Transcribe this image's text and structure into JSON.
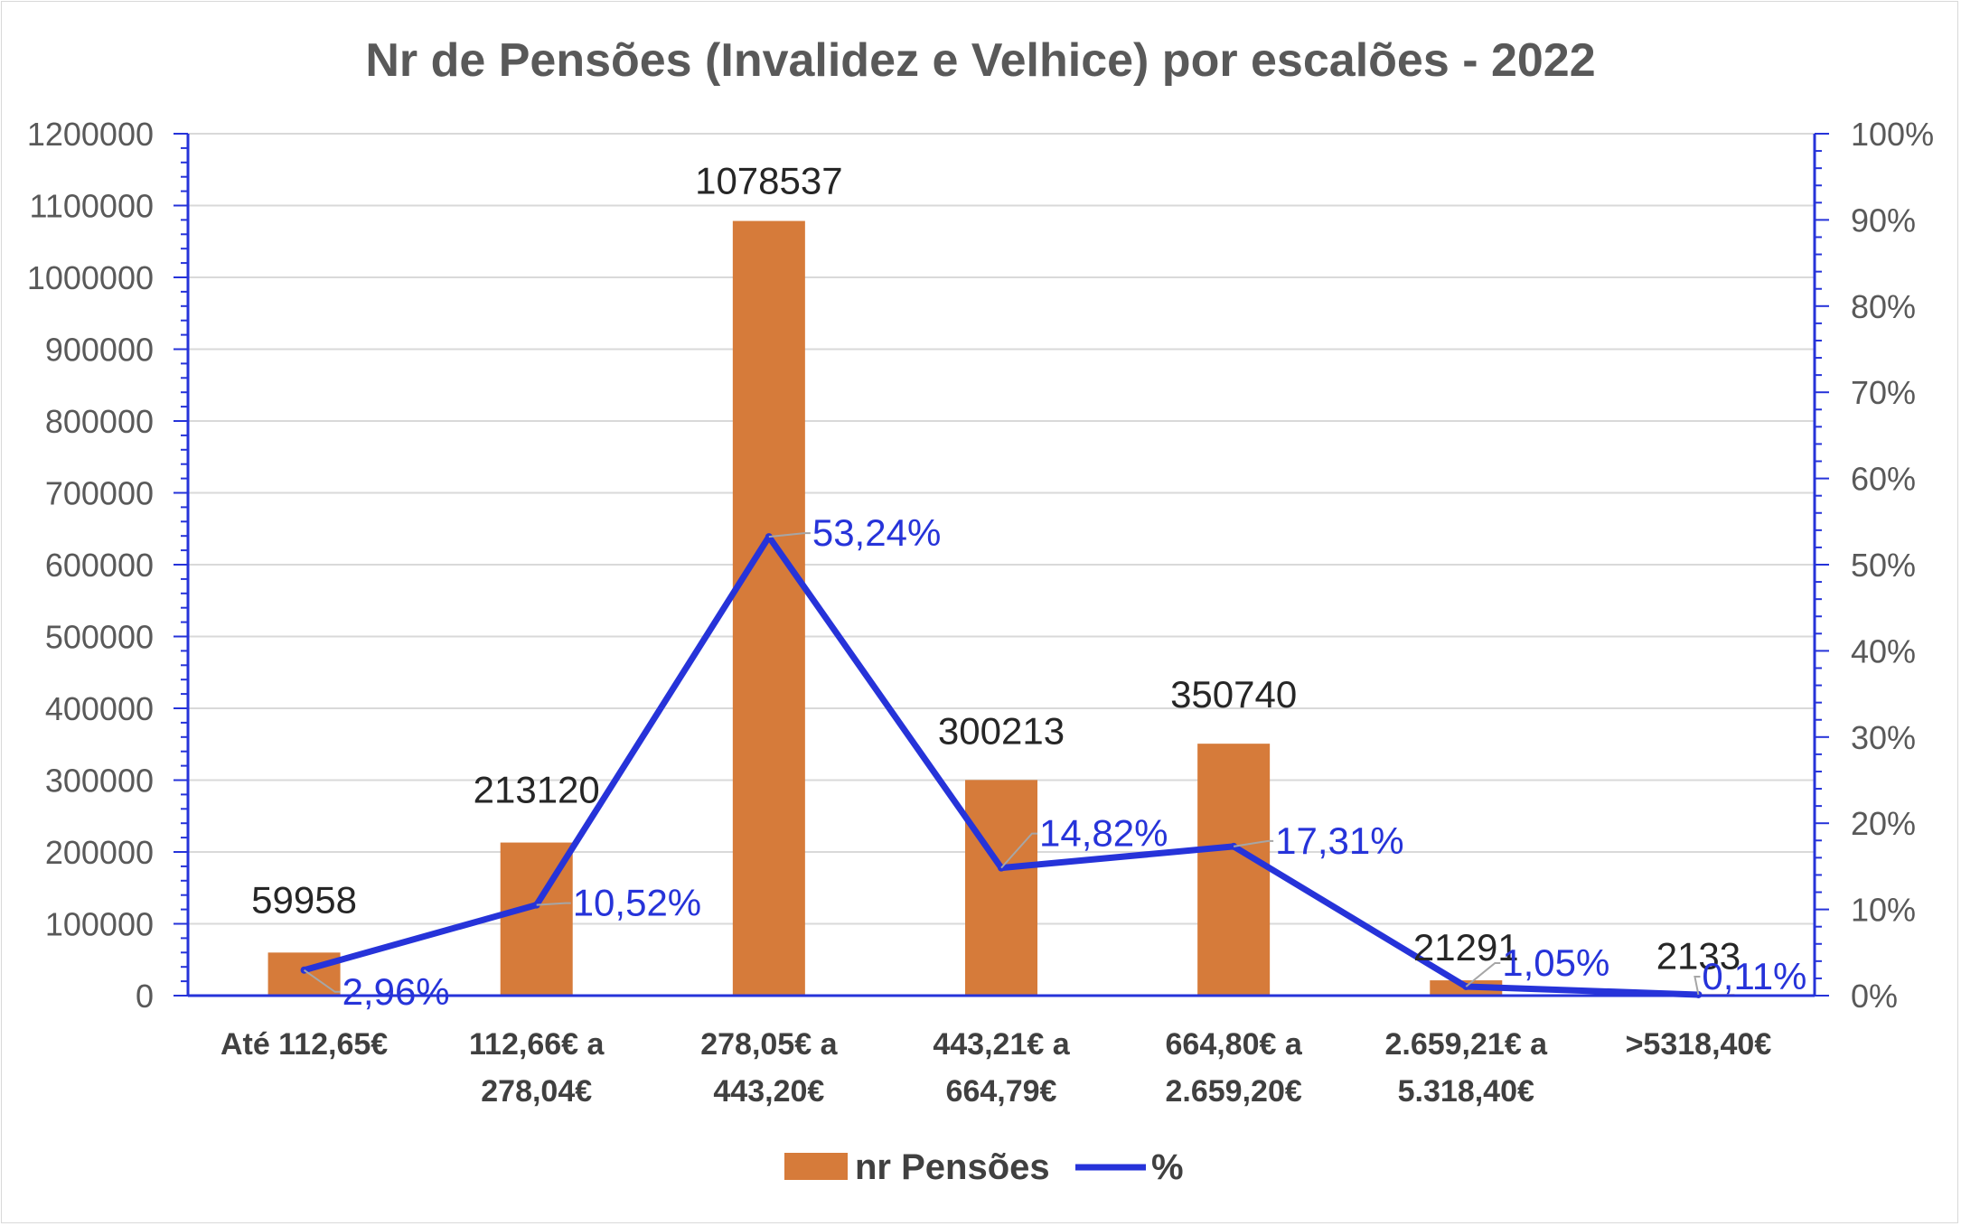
{
  "chart_data": {
    "type": "bar",
    "title": "Nr de Pensões (Invalidez e Velhice) por escalões - 2022",
    "categories": [
      [
        "Até 112,65€"
      ],
      [
        "112,66€ a",
        "278,04€"
      ],
      [
        "278,05€ a",
        "443,20€"
      ],
      [
        "443,21€ a",
        "664,79€"
      ],
      [
        "664,80€ a",
        "2.659,20€"
      ],
      [
        "2.659,21€ a",
        "5.318,40€"
      ],
      [
        ">5318,40€"
      ]
    ],
    "series": [
      {
        "name": "nr Pensões",
        "type": "bar",
        "axis": "primary",
        "color": "#d67b3a",
        "values": [
          59958,
          213120,
          1078537,
          300213,
          350740,
          21291,
          2133
        ],
        "labels": [
          "59958",
          "213120",
          "1078537",
          "300213",
          "350740",
          "21291",
          "2133"
        ]
      },
      {
        "name": "%",
        "type": "line",
        "axis": "secondary",
        "color": "#2633d9",
        "values": [
          2.96,
          10.52,
          53.24,
          14.82,
          17.31,
          1.05,
          0.11
        ],
        "labels": [
          "2,96%",
          "10,52%",
          "53,24%",
          "14,82%",
          "17,31%",
          "1,05%",
          "0,11%"
        ]
      }
    ],
    "y_axis": {
      "min": 0,
      "max": 1200000,
      "step": 100000,
      "ticks": [
        "0",
        "100000",
        "200000",
        "300000",
        "400000",
        "500000",
        "600000",
        "700000",
        "800000",
        "900000",
        "1000000",
        "1100000",
        "1200000"
      ]
    },
    "y2_axis": {
      "min": 0,
      "max": 100,
      "step": 10,
      "ticks": [
        "0%",
        "10%",
        "20%",
        "30%",
        "40%",
        "50%",
        "60%",
        "70%",
        "80%",
        "90%",
        "100%"
      ]
    },
    "grid": true,
    "legend_position": "bottom",
    "colors": {
      "bar": "#d67b3a",
      "line": "#2633d9",
      "axis": "#2633d9",
      "grid": "#d9d9d9"
    }
  }
}
